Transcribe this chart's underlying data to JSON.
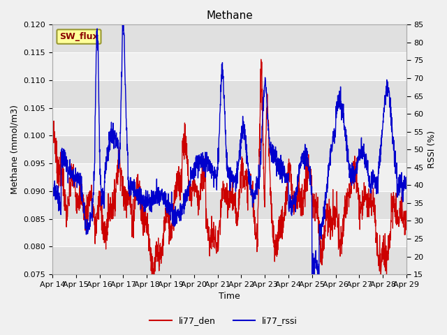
{
  "title": "Methane",
  "xlabel": "Time",
  "ylabel_left": "Methane (mmol/m3)",
  "ylabel_right": "RSSI (%)",
  "ylim_left": [
    0.075,
    0.12
  ],
  "ylim_right": [
    15,
    85
  ],
  "yticks_left": [
    0.075,
    0.08,
    0.085,
    0.09,
    0.095,
    0.1,
    0.105,
    0.11,
    0.115,
    0.12
  ],
  "yticks_right": [
    15,
    20,
    25,
    30,
    35,
    40,
    45,
    50,
    55,
    60,
    65,
    70,
    75,
    80,
    85
  ],
  "xtick_labels": [
    "Apr 14",
    "Apr 15",
    "Apr 16",
    "Apr 17",
    "Apr 18",
    "Apr 19",
    "Apr 20",
    "Apr 21",
    "Apr 22",
    "Apr 23",
    "Apr 24",
    "Apr 25",
    "Apr 26",
    "Apr 27",
    "Apr 28",
    "Apr 29"
  ],
  "legend_labels": [
    "li77_den",
    "li77_rssi"
  ],
  "color_den": "#cc0000",
  "color_rssi": "#0000cc",
  "sw_flux_label": "SW_flux",
  "title_fontsize": 11,
  "axis_label_fontsize": 9,
  "tick_fontsize": 8,
  "legend_fontsize": 9,
  "fig_bg": "#f0f0f0",
  "band_light": "#f0f0f0",
  "band_dark": "#e0e0e0"
}
